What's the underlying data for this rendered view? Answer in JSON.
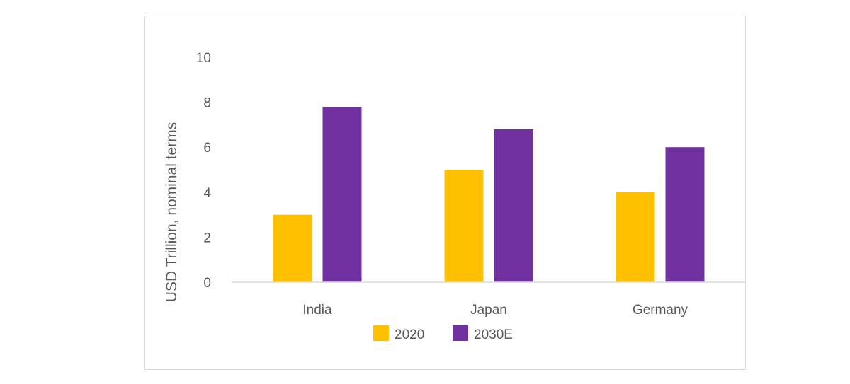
{
  "chart_data": {
    "type": "bar",
    "title": "",
    "xlabel": "",
    "ylabel": "USD Trillion, nominal terms",
    "categories": [
      "India",
      "Japan",
      "Germany"
    ],
    "series": [
      {
        "name": "2020",
        "values": [
          3,
          5,
          4
        ],
        "color": "#FFC000"
      },
      {
        "name": "2030E",
        "values": [
          7.8,
          6.8,
          6
        ],
        "color": "#7030A0"
      }
    ],
    "ylim": [
      0,
      10
    ],
    "yticks": [
      0,
      2,
      4,
      6,
      8,
      10
    ],
    "grid": false,
    "legend_position": "bottom"
  }
}
